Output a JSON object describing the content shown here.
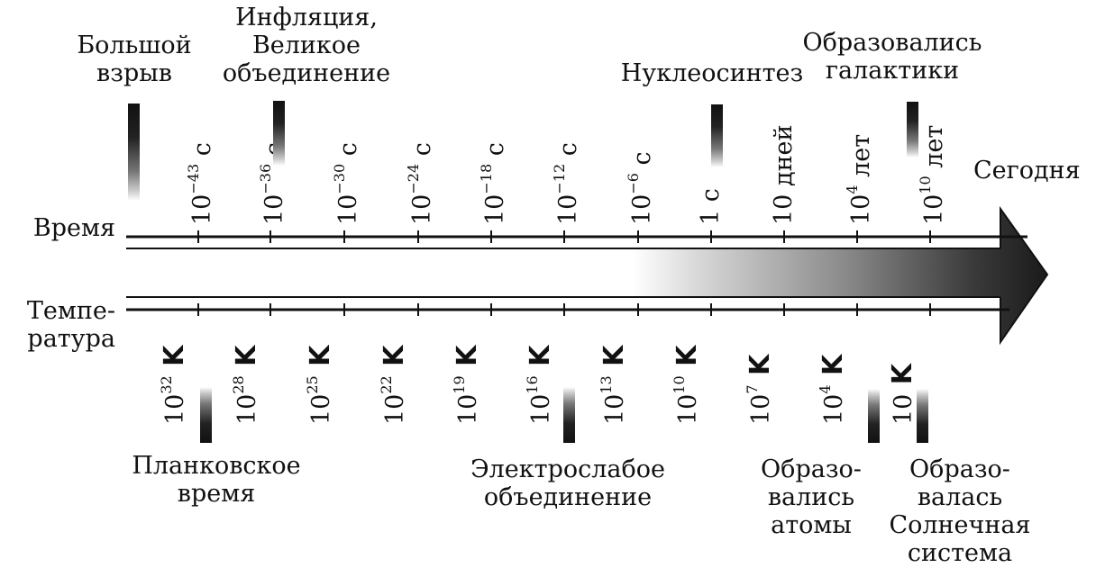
{
  "axis_labels": {
    "time": "Время",
    "temperature": [
      "Темпе-",
      "ратура"
    ],
    "today": "Сегодня"
  },
  "time_ticks": [
    {
      "base": "10",
      "exp": "−43",
      "unit": "с"
    },
    {
      "base": "10",
      "exp": "−36",
      "unit": "с"
    },
    {
      "base": "10",
      "exp": "−30",
      "unit": "с"
    },
    {
      "base": "10",
      "exp": "−24",
      "unit": "с"
    },
    {
      "base": "10",
      "exp": "−18",
      "unit": "с"
    },
    {
      "base": "10",
      "exp": "−12",
      "unit": "с"
    },
    {
      "base": "10",
      "exp": "−6",
      "unit": "с"
    },
    {
      "base": "1 с",
      "exp": "",
      "unit": ""
    },
    {
      "base": "10 дней",
      "exp": "",
      "unit": ""
    },
    {
      "base": "10",
      "exp": "4",
      "unit": "лет"
    },
    {
      "base": "10",
      "exp": "10",
      "unit": "лет"
    }
  ],
  "temperature_ticks": [
    {
      "base": "10",
      "exp": "32",
      "unit": "K"
    },
    {
      "base": "10",
      "exp": "28",
      "unit": "K"
    },
    {
      "base": "10",
      "exp": "25",
      "unit": "K"
    },
    {
      "base": "10",
      "exp": "22",
      "unit": "K"
    },
    {
      "base": "10",
      "exp": "19",
      "unit": "K"
    },
    {
      "base": "10",
      "exp": "16",
      "unit": "K"
    },
    {
      "base": "10",
      "exp": "13",
      "unit": "K"
    },
    {
      "base": "10",
      "exp": "10",
      "unit": "K"
    },
    {
      "base": "10",
      "exp": "7",
      "unit": "K"
    },
    {
      "base": "10",
      "exp": "4",
      "unit": "K"
    },
    {
      "base": "10",
      "exp": "",
      "unit": "K"
    }
  ],
  "events_top": [
    {
      "lines": [
        "Большой",
        "взрыв"
      ]
    },
    {
      "lines": [
        "Инфляция,",
        "Великое",
        "объединение"
      ]
    },
    {
      "lines": [
        "Нуклеосинтез"
      ]
    },
    {
      "lines": [
        "Образовались",
        "галактики"
      ]
    }
  ],
  "events_bottom": [
    {
      "lines": [
        "Планковское",
        "время"
      ]
    },
    {
      "lines": [
        "Электрослабое",
        "объединение"
      ]
    },
    {
      "lines": [
        "Образо-",
        "вались",
        "атомы"
      ]
    },
    {
      "lines": [
        "Образо-",
        "валась",
        "Солнечная",
        "система"
      ]
    }
  ],
  "colors": {
    "ink": "#111111",
    "arrow_dark": "#1a1a1a",
    "arrow_light": "#ffffff"
  }
}
